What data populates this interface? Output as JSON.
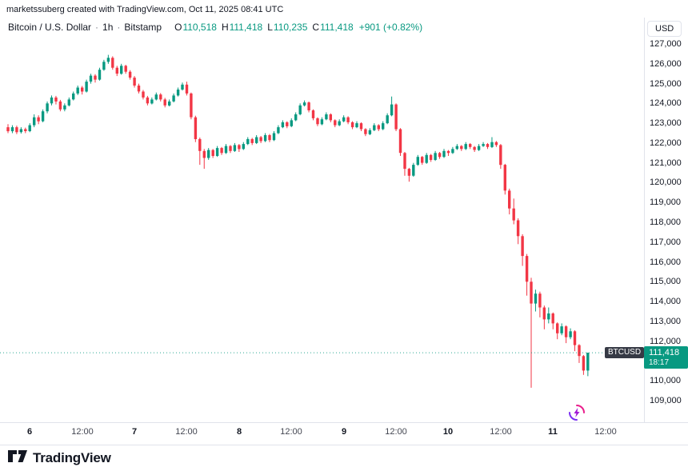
{
  "attribution": "marketssuberg created with TradingView.com, Oct 11, 2025 08:41 UTC",
  "header": {
    "symbol": "Bitcoin / U.S. Dollar",
    "separator": "·",
    "interval": "1h",
    "exchange": "Bitstamp",
    "ohlc": [
      {
        "label": "O",
        "value": "110,518"
      },
      {
        "label": "H",
        "value": "111,418"
      },
      {
        "label": "L",
        "value": "110,235"
      },
      {
        "label": "C",
        "value": "111,418"
      }
    ],
    "change": "+901 (+0.82%)"
  },
  "price_axis": {
    "unit": "USD",
    "labels": [
      "127,000",
      "126,000",
      "125,000",
      "124,000",
      "123,000",
      "122,000",
      "121,000",
      "120,000",
      "119,000",
      "118,000",
      "117,000",
      "116,000",
      "115,000",
      "114,000",
      "113,000",
      "112,000",
      "111,000",
      "110,000",
      "109,000"
    ]
  },
  "time_axis": {
    "ticks": [
      {
        "label": "6",
        "candle_index": 5,
        "style": "day"
      },
      {
        "label": "12:00",
        "candle_index": 17,
        "style": "time"
      },
      {
        "label": "7",
        "candle_index": 29,
        "style": "day"
      },
      {
        "label": "12:00",
        "candle_index": 41,
        "style": "time"
      },
      {
        "label": "8",
        "candle_index": 53,
        "style": "day"
      },
      {
        "label": "12:00",
        "candle_index": 65,
        "style": "time"
      },
      {
        "label": "9",
        "candle_index": 77,
        "style": "day"
      },
      {
        "label": "12:00",
        "candle_index": 89,
        "style": "time"
      },
      {
        "label": "10",
        "candle_index": 101,
        "style": "day"
      },
      {
        "label": "12:00",
        "candle_index": 113,
        "style": "time"
      },
      {
        "label": "11",
        "candle_index": 125,
        "style": "day"
      },
      {
        "label": "12:00",
        "candle_index": 137,
        "style": "time"
      }
    ]
  },
  "price_label": {
    "symbol": "BTCUSD",
    "price": "111,418",
    "countdown": "18:17"
  },
  "footer": {
    "logo_text": "TradingView"
  },
  "colors": {
    "up": "#089981",
    "down": "#F23645",
    "text": "#131722",
    "muted": "#787b86",
    "grid": "#e0e3eb"
  },
  "chart_data": {
    "type": "candlestick",
    "title": "Bitcoin / U.S. Dollar, 1h, Bitstamp",
    "interval": "1h",
    "start": "Oct 5 2025 19:00 UTC",
    "end": "Oct 11 2025 08:00 UTC",
    "current_price": 111418,
    "y_range": [
      109000,
      127000
    ],
    "x_tick_labels": [
      "6",
      "12:00",
      "7",
      "12:00",
      "8",
      "12:00",
      "9",
      "12:00",
      "10",
      "12:00",
      "11",
      "12:00"
    ],
    "candles": [
      [
        122800,
        122950,
        122500,
        122600
      ],
      [
        122600,
        122900,
        122500,
        122800
      ],
      [
        122800,
        122880,
        122450,
        122550
      ],
      [
        122550,
        122800,
        122480,
        122700
      ],
      [
        122700,
        122780,
        122500,
        122600
      ],
      [
        122600,
        123000,
        122550,
        122900
      ],
      [
        122900,
        123450,
        122800,
        123300
      ],
      [
        123300,
        123400,
        122950,
        123100
      ],
      [
        123100,
        123700,
        123050,
        123600
      ],
      [
        123600,
        124100,
        123500,
        124000
      ],
      [
        124000,
        124400,
        123900,
        124300
      ],
      [
        124300,
        124380,
        123950,
        124100
      ],
      [
        124100,
        124180,
        123600,
        123700
      ],
      [
        123700,
        124000,
        123600,
        123900
      ],
      [
        123900,
        124300,
        123850,
        124200
      ],
      [
        124200,
        124600,
        124150,
        124500
      ],
      [
        124500,
        124900,
        124420,
        124800
      ],
      [
        124800,
        124880,
        124450,
        124600
      ],
      [
        124600,
        125200,
        124550,
        125100
      ],
      [
        125100,
        125500,
        125000,
        125400
      ],
      [
        125400,
        125480,
        125050,
        125200
      ],
      [
        125200,
        125800,
        125150,
        125700
      ],
      [
        125700,
        126200,
        125650,
        126100
      ],
      [
        126100,
        126450,
        126000,
        126300
      ],
      [
        126300,
        126380,
        125700,
        125800
      ],
      [
        125800,
        125900,
        125380,
        125500
      ],
      [
        125500,
        126000,
        125450,
        125900
      ],
      [
        125900,
        125950,
        125500,
        125600
      ],
      [
        125600,
        125680,
        125200,
        125300
      ],
      [
        125300,
        125380,
        124800,
        124900
      ],
      [
        124900,
        125000,
        124500,
        124600
      ],
      [
        124600,
        124680,
        124200,
        124300
      ],
      [
        124300,
        124380,
        123900,
        124000
      ],
      [
        124000,
        124300,
        123950,
        124200
      ],
      [
        124200,
        124550,
        124150,
        124450
      ],
      [
        124450,
        124520,
        124100,
        124200
      ],
      [
        124200,
        124280,
        123800,
        123900
      ],
      [
        123900,
        124200,
        123850,
        124100
      ],
      [
        124100,
        124500,
        124050,
        124400
      ],
      [
        124400,
        124800,
        124350,
        124700
      ],
      [
        124700,
        125050,
        124650,
        124950
      ],
      [
        124950,
        125100,
        124400,
        124500
      ],
      [
        124500,
        124550,
        123200,
        123300
      ],
      [
        123300,
        123380,
        122050,
        122200
      ],
      [
        122200,
        122280,
        120900,
        121600
      ],
      [
        121600,
        121700,
        120700,
        121250
      ],
      [
        121250,
        121750,
        121150,
        121650
      ],
      [
        121650,
        121700,
        121250,
        121350
      ],
      [
        121350,
        121850,
        121300,
        121750
      ],
      [
        121750,
        121800,
        121400,
        121500
      ],
      [
        121500,
        121950,
        121450,
        121850
      ],
      [
        121850,
        121900,
        121500,
        121600
      ],
      [
        121600,
        122000,
        121550,
        121900
      ],
      [
        121900,
        121950,
        121550,
        121700
      ],
      [
        121700,
        122050,
        121650,
        121950
      ],
      [
        121950,
        122300,
        121900,
        122200
      ],
      [
        122200,
        122260,
        121900,
        122000
      ],
      [
        122000,
        122400,
        121950,
        122300
      ],
      [
        122300,
        122360,
        122000,
        122100
      ],
      [
        122100,
        122500,
        122050,
        122400
      ],
      [
        122400,
        122460,
        122050,
        122150
      ],
      [
        122150,
        122600,
        122100,
        122500
      ],
      [
        122500,
        122900,
        122450,
        122800
      ],
      [
        122800,
        123150,
        122750,
        123050
      ],
      [
        123050,
        123100,
        122750,
        122850
      ],
      [
        122850,
        123250,
        122800,
        123150
      ],
      [
        123150,
        123550,
        123100,
        123450
      ],
      [
        123450,
        124000,
        123400,
        123900
      ],
      [
        123900,
        124150,
        123850,
        124050
      ],
      [
        124050,
        124100,
        123550,
        123650
      ],
      [
        123650,
        123700,
        123150,
        123250
      ],
      [
        123250,
        123300,
        122850,
        122950
      ],
      [
        122950,
        123300,
        122900,
        123200
      ],
      [
        123200,
        123550,
        123150,
        123450
      ],
      [
        123450,
        123500,
        123050,
        123150
      ],
      [
        123150,
        123200,
        122800,
        122900
      ],
      [
        122900,
        123200,
        122850,
        123100
      ],
      [
        123100,
        123400,
        123050,
        123300
      ],
      [
        123300,
        123350,
        122950,
        123050
      ],
      [
        123050,
        123100,
        122700,
        122800
      ],
      [
        122800,
        123100,
        122750,
        123000
      ],
      [
        123000,
        123050,
        122600,
        122700
      ],
      [
        122700,
        122750,
        122350,
        122450
      ],
      [
        122450,
        122750,
        122400,
        122650
      ],
      [
        122650,
        123000,
        122600,
        122900
      ],
      [
        122900,
        122950,
        122600,
        122700
      ],
      [
        122700,
        123100,
        122650,
        123000
      ],
      [
        123000,
        123500,
        122950,
        123400
      ],
      [
        123400,
        124350,
        123350,
        123950
      ],
      [
        123950,
        124000,
        122600,
        122700
      ],
      [
        122700,
        122750,
        121350,
        121500
      ],
      [
        121500,
        121550,
        120350,
        120700
      ],
      [
        120700,
        120750,
        120050,
        120350
      ],
      [
        120350,
        121000,
        120300,
        120900
      ],
      [
        120900,
        121400,
        120850,
        121300
      ],
      [
        121300,
        121350,
        120900,
        121000
      ],
      [
        121000,
        121500,
        120950,
        121400
      ],
      [
        121400,
        121450,
        121050,
        121150
      ],
      [
        121150,
        121600,
        121100,
        121500
      ],
      [
        121500,
        121550,
        121200,
        121300
      ],
      [
        121300,
        121700,
        121250,
        121600
      ],
      [
        121600,
        121650,
        121350,
        121500
      ],
      [
        121500,
        121800,
        121450,
        121700
      ],
      [
        121700,
        121950,
        121650,
        121850
      ],
      [
        121850,
        121900,
        121600,
        121700
      ],
      [
        121700,
        122050,
        121650,
        121950
      ],
      [
        121950,
        122000,
        121700,
        121800
      ],
      [
        121800,
        121850,
        121550,
        121650
      ],
      [
        121650,
        121950,
        121600,
        121850
      ],
      [
        121850,
        122050,
        121800,
        121950
      ],
      [
        121950,
        122000,
        121700,
        121800
      ],
      [
        121800,
        122300,
        121750,
        122050
      ],
      [
        122050,
        122100,
        121800,
        121900
      ],
      [
        121900,
        121950,
        120700,
        120900
      ],
      [
        120900,
        120950,
        119400,
        119600
      ],
      [
        119600,
        119700,
        118400,
        118700
      ],
      [
        118700,
        119200,
        117900,
        118100
      ],
      [
        118100,
        118200,
        116900,
        117300
      ],
      [
        117300,
        117400,
        115800,
        116300
      ],
      [
        116300,
        116400,
        114300,
        115000
      ],
      [
        115000,
        115200,
        109650,
        113900
      ],
      [
        113900,
        114600,
        113500,
        114400
      ],
      [
        114400,
        114500,
        113200,
        113700
      ],
      [
        113700,
        113800,
        112600,
        113100
      ],
      [
        113100,
        113700,
        112900,
        113400
      ],
      [
        113400,
        113450,
        112600,
        112900
      ],
      [
        112900,
        112950,
        112100,
        112400
      ],
      [
        112400,
        112900,
        112300,
        112750
      ],
      [
        112750,
        112800,
        111900,
        112200
      ],
      [
        112200,
        112650,
        112100,
        112500
      ],
      [
        112500,
        112550,
        111500,
        111800
      ],
      [
        111800,
        111850,
        110900,
        111250
      ],
      [
        111250,
        111300,
        110300,
        110518
      ],
      [
        110518,
        111418,
        110235,
        111418
      ]
    ]
  }
}
